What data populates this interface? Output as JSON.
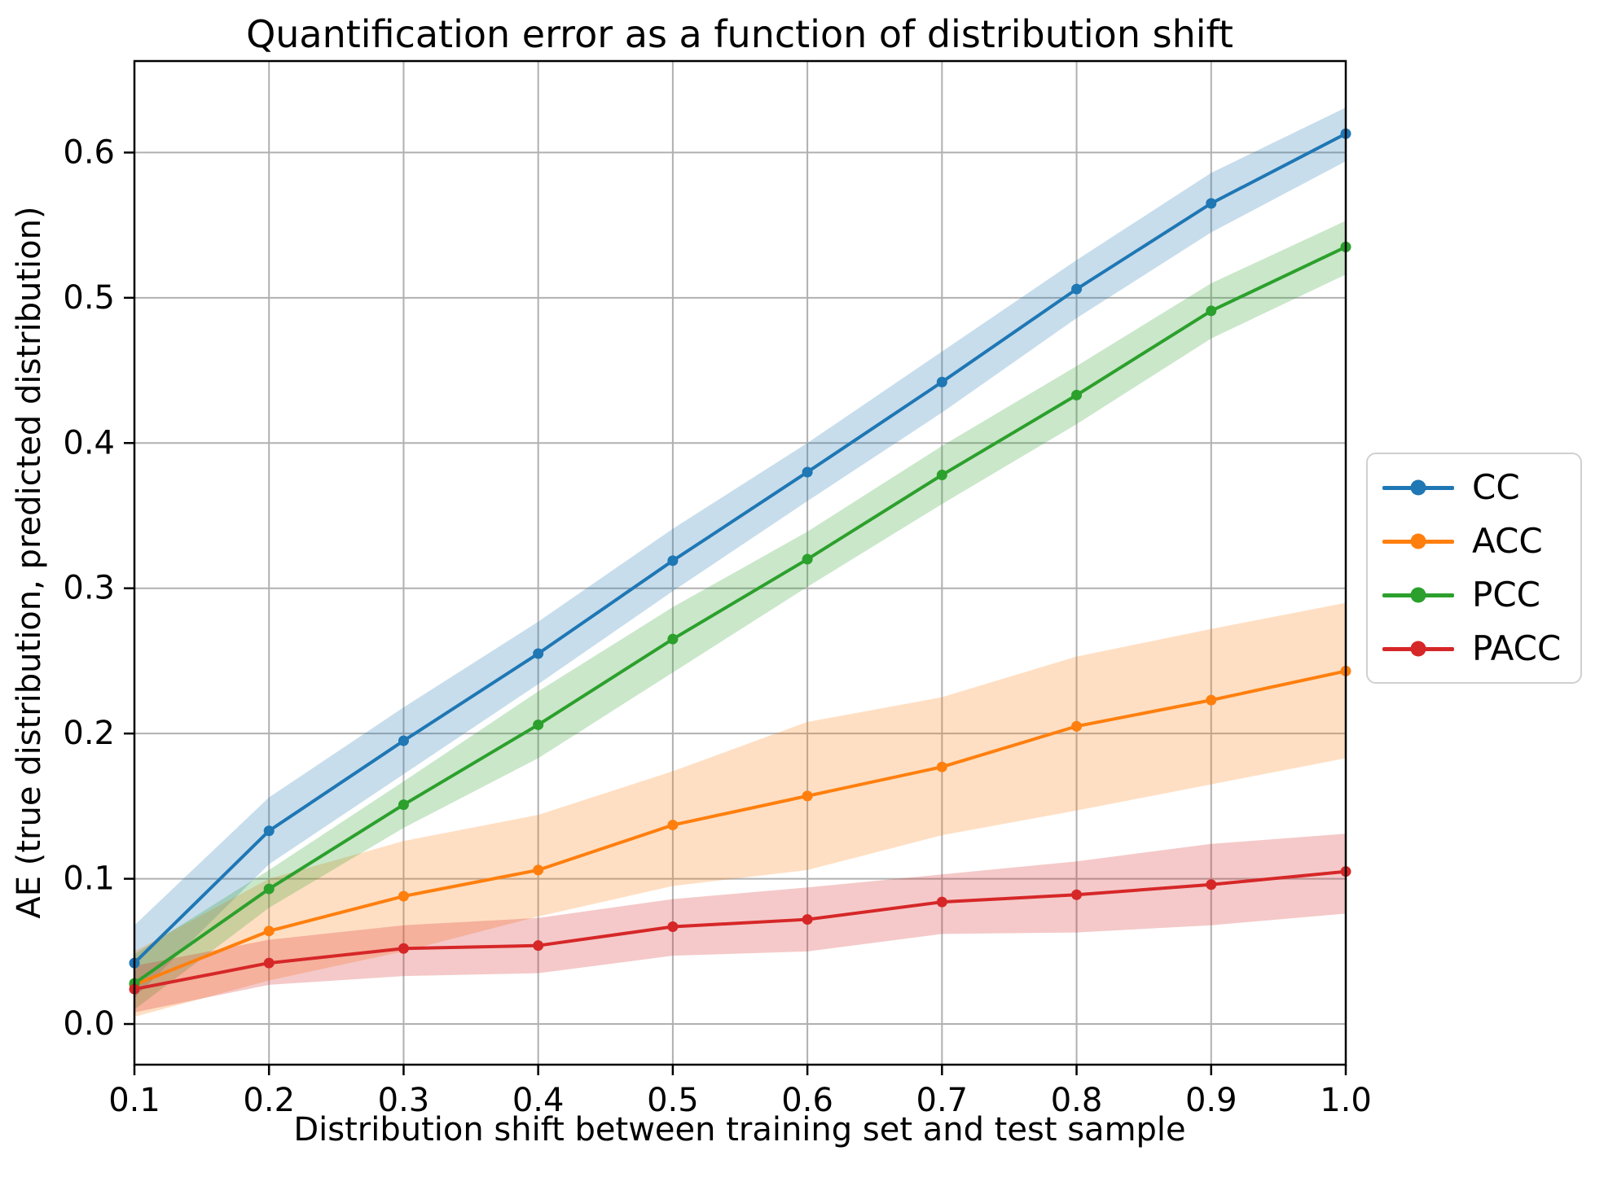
{
  "chart_data": {
    "type": "line",
    "title": "Quantification error as a function of distribution shift",
    "xlabel": "Distribution shift between training set and test sample",
    "ylabel": "AE (true distribution, predicted distribution)",
    "x": [
      0.1,
      0.2,
      0.3,
      0.4,
      0.5,
      0.6,
      0.7,
      0.8,
      0.9,
      1.0
    ],
    "x_ticks": [
      "0.1",
      "0.2",
      "0.3",
      "0.4",
      "0.5",
      "0.6",
      "0.7",
      "0.8",
      "0.9",
      "1.0"
    ],
    "y_ticks": [
      "0.0",
      "0.1",
      "0.2",
      "0.3",
      "0.4",
      "0.5",
      "0.6"
    ],
    "y_tick_values": [
      0.0,
      0.1,
      0.2,
      0.3,
      0.4,
      0.5,
      0.6
    ],
    "xlim": [
      0.1,
      1.0
    ],
    "ylim": [
      -0.028,
      0.663
    ],
    "grid": true,
    "legend_position": "right of axes, vertically centered",
    "marker": "circle",
    "band_opacity": 0.25,
    "series": [
      {
        "name": "CC",
        "color": "#1f77b4",
        "values": [
          0.042,
          0.133,
          0.195,
          0.255,
          0.319,
          0.38,
          0.442,
          0.506,
          0.565,
          0.613
        ],
        "band_lower": [
          0.018,
          0.11,
          0.172,
          0.234,
          0.298,
          0.36,
          0.421,
          0.486,
          0.545,
          0.594
        ],
        "band_upper": [
          0.068,
          0.156,
          0.218,
          0.277,
          0.341,
          0.4,
          0.463,
          0.526,
          0.586,
          0.631
        ]
      },
      {
        "name": "ACC",
        "color": "#ff7f0e",
        "values": [
          0.027,
          0.064,
          0.088,
          0.106,
          0.137,
          0.157,
          0.177,
          0.205,
          0.223,
          0.243
        ],
        "band_lower": [
          0.005,
          0.03,
          0.05,
          0.074,
          0.095,
          0.106,
          0.13,
          0.147,
          0.165,
          0.183
        ],
        "band_upper": [
          0.05,
          0.1,
          0.126,
          0.144,
          0.174,
          0.208,
          0.225,
          0.253,
          0.272,
          0.29
        ]
      },
      {
        "name": "PCC",
        "color": "#2ca02c",
        "values": [
          0.028,
          0.093,
          0.151,
          0.206,
          0.265,
          0.32,
          0.378,
          0.433,
          0.491,
          0.535
        ],
        "band_lower": [
          0.01,
          0.08,
          0.135,
          0.183,
          0.242,
          0.301,
          0.358,
          0.413,
          0.472,
          0.516
        ],
        "band_upper": [
          0.048,
          0.106,
          0.167,
          0.229,
          0.287,
          0.339,
          0.398,
          0.453,
          0.51,
          0.553
        ]
      },
      {
        "name": "PACC",
        "color": "#d62728",
        "values": [
          0.024,
          0.042,
          0.052,
          0.054,
          0.067,
          0.072,
          0.084,
          0.089,
          0.096,
          0.105
        ],
        "band_lower": [
          0.008,
          0.027,
          0.033,
          0.035,
          0.047,
          0.05,
          0.062,
          0.063,
          0.068,
          0.076
        ],
        "band_upper": [
          0.04,
          0.058,
          0.068,
          0.073,
          0.086,
          0.094,
          0.103,
          0.112,
          0.124,
          0.131
        ]
      }
    ],
    "colors": {
      "grid": "#b0b0b0",
      "frame": "#000000",
      "background": "#ffffff",
      "legend_border": "#d0d0d0"
    }
  }
}
